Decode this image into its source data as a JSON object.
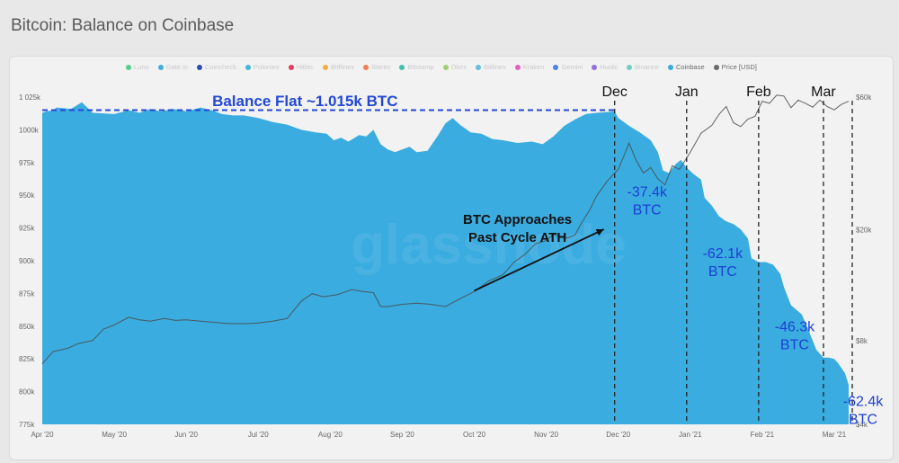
{
  "header": {
    "title": "Bitcoin: Balance on Coinbase"
  },
  "legend": [
    {
      "label": "Luno",
      "color": "#55cc88",
      "active": false
    },
    {
      "label": "Gate.io",
      "color": "#3db0e0",
      "active": false
    },
    {
      "label": "Coincheck",
      "color": "#2a4fb0",
      "active": false
    },
    {
      "label": "Poloniex",
      "color": "#3fb9d8",
      "active": false
    },
    {
      "label": "Hitbtc",
      "color": "#e04060",
      "active": false
    },
    {
      "label": "Bitflinex",
      "color": "#f0b040",
      "active": false
    },
    {
      "label": "Bittrex",
      "color": "#f08050",
      "active": false
    },
    {
      "label": "Bitstamp",
      "color": "#40c0b0",
      "active": false
    },
    {
      "label": "Okex",
      "color": "#a0d070",
      "active": false
    },
    {
      "label": "Bitfinex",
      "color": "#60c0e0",
      "active": false
    },
    {
      "label": "Kraken",
      "color": "#e060c0",
      "active": false
    },
    {
      "label": "Gemini",
      "color": "#5080e0",
      "active": false
    },
    {
      "label": "Huobi",
      "color": "#9070e0",
      "active": false
    },
    {
      "label": "Binance",
      "color": "#70d0c0",
      "active": false
    },
    {
      "label": "Coinbase",
      "color": "#3aace0",
      "active": true
    },
    {
      "label": "Price [USD]",
      "color": "#6a6a6a",
      "active": true
    }
  ],
  "chart_data": {
    "type": "area",
    "title": "Bitcoin: Balance on Coinbase",
    "watermark": "glassnode",
    "x_ticks": [
      "Apr '20",
      "May '20",
      "Jun '20",
      "Jul '20",
      "Aug '20",
      "Sep '20",
      "Oct '20",
      "Nov '20",
      "Dec '20",
      "Jan '21",
      "Feb '21",
      "Mar '21"
    ],
    "y_left": {
      "ticks": [
        "775k",
        "800k",
        "825k",
        "850k",
        "875k",
        "900k",
        "925k",
        "950k",
        "975k",
        "1000k",
        "1 025k"
      ],
      "range": [
        775,
        1025
      ]
    },
    "y_right": {
      "ticks": [
        "$4k",
        "$8k",
        "$20k",
        "$60k"
      ],
      "scale": "log",
      "range": [
        4000,
        60000
      ]
    },
    "series": [
      {
        "name": "Coinbase",
        "unit": "k BTC",
        "color": "#3aace0",
        "points": [
          [
            0,
            1013
          ],
          [
            0.05,
            1014
          ],
          [
            0.15,
            1015
          ],
          [
            0.2,
            1017
          ],
          [
            0.4,
            1016
          ],
          [
            0.55,
            1021
          ],
          [
            0.7,
            1013
          ],
          [
            1.0,
            1012
          ],
          [
            1.2,
            1015
          ],
          [
            1.35,
            1013
          ],
          [
            1.5,
            1016
          ],
          [
            1.65,
            1014
          ],
          [
            1.8,
            1016
          ],
          [
            1.95,
            1015
          ],
          [
            2.0,
            1014
          ],
          [
            2.2,
            1017
          ],
          [
            2.35,
            1015
          ],
          [
            2.5,
            1012
          ],
          [
            2.65,
            1011
          ],
          [
            2.8,
            1011
          ],
          [
            3.0,
            1009
          ],
          [
            3.2,
            1006
          ],
          [
            3.4,
            1004
          ],
          [
            3.6,
            1000
          ],
          [
            3.8,
            998
          ],
          [
            3.95,
            997
          ],
          [
            4.05,
            992
          ],
          [
            4.15,
            994
          ],
          [
            4.25,
            991
          ],
          [
            4.4,
            996
          ],
          [
            4.5,
            995
          ],
          [
            4.6,
            1000
          ],
          [
            4.7,
            989
          ],
          [
            4.8,
            985
          ],
          [
            4.9,
            983
          ],
          [
            5.0,
            985
          ],
          [
            5.1,
            987
          ],
          [
            5.2,
            983
          ],
          [
            5.35,
            984
          ],
          [
            5.5,
            996
          ],
          [
            5.6,
            1005
          ],
          [
            5.7,
            1009
          ],
          [
            5.8,
            1004
          ],
          [
            5.95,
            998
          ],
          [
            6.1,
            997
          ],
          [
            6.25,
            993
          ],
          [
            6.4,
            992
          ],
          [
            6.6,
            990
          ],
          [
            6.8,
            991
          ],
          [
            6.95,
            989
          ],
          [
            7.1,
            995
          ],
          [
            7.25,
            1003
          ],
          [
            7.4,
            1008
          ],
          [
            7.55,
            1012
          ],
          [
            7.7,
            1013
          ],
          [
            7.95,
            1014
          ],
          [
            8.0,
            1009
          ],
          [
            8.15,
            1003
          ],
          [
            8.3,
            998
          ],
          [
            8.45,
            992
          ],
          [
            8.55,
            983
          ],
          [
            8.62,
            969
          ],
          [
            8.7,
            967
          ],
          [
            8.8,
            974
          ],
          [
            8.87,
            977
          ],
          [
            8.95,
            971
          ],
          [
            9.05,
            966
          ],
          [
            9.15,
            962
          ],
          [
            9.2,
            948
          ],
          [
            9.3,
            942
          ],
          [
            9.4,
            934
          ],
          [
            9.5,
            930
          ],
          [
            9.6,
            928
          ],
          [
            9.7,
            924
          ],
          [
            9.8,
            917
          ],
          [
            9.85,
            902
          ],
          [
            9.95,
            899
          ],
          [
            10.05,
            899
          ],
          [
            10.15,
            897
          ],
          [
            10.25,
            890
          ],
          [
            10.3,
            880
          ],
          [
            10.4,
            866
          ],
          [
            10.55,
            859
          ],
          [
            10.65,
            846
          ],
          [
            10.75,
            832
          ],
          [
            10.85,
            826
          ],
          [
            10.92,
            826
          ],
          [
            11.0,
            825
          ],
          [
            11.05,
            822
          ],
          [
            11.15,
            814
          ],
          [
            11.2,
            805
          ]
        ]
      },
      {
        "name": "Price [USD]",
        "unit": "USD",
        "color": "#555555",
        "points": [
          [
            0,
            6600
          ],
          [
            0.15,
            7300
          ],
          [
            0.35,
            7500
          ],
          [
            0.5,
            7800
          ],
          [
            0.7,
            8000
          ],
          [
            0.85,
            8800
          ],
          [
            1.0,
            9100
          ],
          [
            1.1,
            9400
          ],
          [
            1.2,
            9700
          ],
          [
            1.35,
            9500
          ],
          [
            1.5,
            9400
          ],
          [
            1.7,
            9600
          ],
          [
            1.85,
            9450
          ],
          [
            2.0,
            9500
          ],
          [
            2.2,
            9400
          ],
          [
            2.4,
            9300
          ],
          [
            2.6,
            9200
          ],
          [
            2.85,
            9200
          ],
          [
            3.0,
            9250
          ],
          [
            3.2,
            9400
          ],
          [
            3.4,
            9600
          ],
          [
            3.6,
            11100
          ],
          [
            3.75,
            11800
          ],
          [
            3.9,
            11500
          ],
          [
            4.1,
            11700
          ],
          [
            4.3,
            12200
          ],
          [
            4.45,
            12000
          ],
          [
            4.6,
            11900
          ],
          [
            4.7,
            10600
          ],
          [
            4.8,
            10600
          ],
          [
            5.0,
            10800
          ],
          [
            5.2,
            10900
          ],
          [
            5.4,
            10800
          ],
          [
            5.6,
            10600
          ],
          [
            5.8,
            11300
          ],
          [
            6.0,
            12000
          ],
          [
            6.2,
            13100
          ],
          [
            6.4,
            13800
          ],
          [
            6.55,
            15300
          ],
          [
            6.7,
            16300
          ],
          [
            6.85,
            17800
          ],
          [
            7.0,
            18300
          ],
          [
            7.1,
            19300
          ],
          [
            7.2,
            19000
          ],
          [
            7.3,
            18700
          ],
          [
            7.4,
            19200
          ],
          [
            7.5,
            21400
          ],
          [
            7.6,
            23500
          ],
          [
            7.7,
            26500
          ],
          [
            7.85,
            30000
          ],
          [
            8.0,
            33000
          ],
          [
            8.1,
            38000
          ],
          [
            8.15,
            41000
          ],
          [
            8.25,
            35500
          ],
          [
            8.35,
            32000
          ],
          [
            8.45,
            33500
          ],
          [
            8.55,
            30500
          ],
          [
            8.65,
            29000
          ],
          [
            8.75,
            34000
          ],
          [
            8.85,
            33000
          ],
          [
            9.0,
            38000
          ],
          [
            9.15,
            44500
          ],
          [
            9.3,
            47500
          ],
          [
            9.4,
            52000
          ],
          [
            9.5,
            55500
          ],
          [
            9.6,
            48500
          ],
          [
            9.7,
            47000
          ],
          [
            9.8,
            50000
          ],
          [
            9.9,
            51200
          ],
          [
            10.0,
            58000
          ],
          [
            10.1,
            57000
          ],
          [
            10.2,
            61000
          ],
          [
            10.3,
            60500
          ],
          [
            10.4,
            55000
          ],
          [
            10.5,
            58500
          ],
          [
            10.6,
            57000
          ],
          [
            10.7,
            55200
          ],
          [
            10.8,
            58500
          ],
          [
            10.9,
            55500
          ],
          [
            11.0,
            54000
          ],
          [
            11.1,
            56500
          ],
          [
            11.2,
            58000
          ]
        ]
      }
    ],
    "annotations": {
      "flat_label": "Balance Flat ~1.015k BTC",
      "flat_level": 1015,
      "flat_range": [
        0,
        7.95
      ],
      "approach_label": [
        "BTC Approaches",
        "Past Cycle ATH"
      ],
      "arrow_from": [
        6.0,
        877
      ],
      "arrow_to": [
        7.8,
        924
      ],
      "months": [
        {
          "name": "Dec",
          "x": 7.95
        },
        {
          "name": "Jan",
          "x": 8.95
        },
        {
          "name": "Feb",
          "x": 9.95
        },
        {
          "name": "Mar",
          "x": 10.85
        }
      ],
      "extra_lines": [
        11.25
      ],
      "drops": [
        {
          "value": "-37.4k",
          "unit": "BTC",
          "x": 8.4,
          "y": 949
        },
        {
          "value": "-62.1k",
          "unit": "BTC",
          "x": 9.45,
          "y": 902
        },
        {
          "value": "-46.3k",
          "unit": "BTC",
          "x": 10.45,
          "y": 846
        },
        {
          "value": "-62.4k",
          "unit": "BTC",
          "x": 11.4,
          "y": 789
        }
      ]
    }
  }
}
